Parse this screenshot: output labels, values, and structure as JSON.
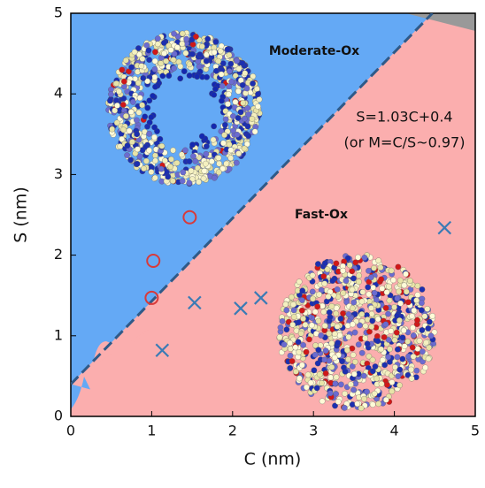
{
  "chart_data": {
    "type": "scatter",
    "xlabel": "C (nm)",
    "ylabel": "S (nm)",
    "xlim": [
      0,
      5
    ],
    "ylim": [
      0,
      5
    ],
    "xticks": [
      0,
      1,
      2,
      3,
      4,
      5
    ],
    "yticks": [
      0,
      1,
      2,
      3,
      4,
      5
    ],
    "regions": [
      {
        "label": "Moderate-Ox",
        "color": "#64a9f5"
      },
      {
        "label": "Fast-Ox",
        "color": "#fbaeae"
      }
    ],
    "boundary": {
      "x": [
        0,
        4.47
      ],
      "values": [
        0.4,
        5
      ],
      "color": "#2f5a88"
    },
    "annotations": [
      "S=1.03C+0.4",
      "(or M=C/S~0.97)"
    ],
    "series": [
      {
        "marker": "circle",
        "color": "#d83a3a",
        "x": [
          1.0,
          1.02,
          1.47
        ],
        "values": [
          1.47,
          1.93,
          2.47
        ]
      },
      {
        "marker": "cross",
        "color": "#3a7bb5",
        "x": [
          1.13,
          1.53,
          2.1,
          2.35,
          4.62
        ],
        "values": [
          0.82,
          1.41,
          1.34,
          1.47,
          2.34
        ]
      }
    ]
  }
}
